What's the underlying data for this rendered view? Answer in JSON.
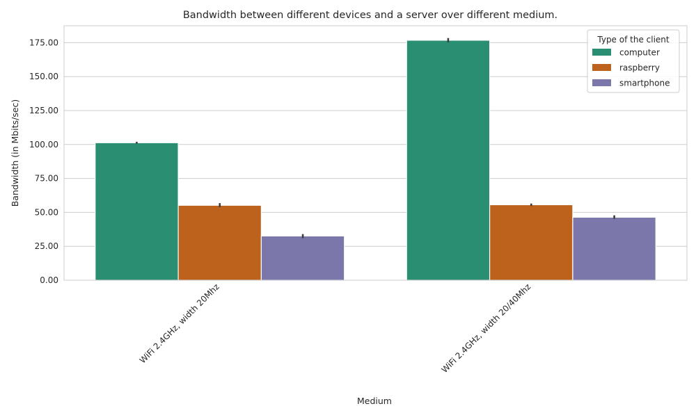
{
  "chart_data": {
    "type": "bar",
    "title": "Bandwidth between different devices and a server over different medium.",
    "xlabel": "Medium",
    "ylabel": "Bandwidth (in Mbits/sec)",
    "categories": [
      "WiFi 2.4GHz, width 20Mhz",
      "WiFi 2.4GHz, width 20/40Mhz"
    ],
    "series": [
      {
        "name": "computer",
        "color": "#2a8f72",
        "values": [
          101.3,
          176.8
        ],
        "err_low": [
          100.6,
          175.3
        ],
        "err_high": [
          102.0,
          178.4
        ]
      },
      {
        "name": "raspberry",
        "color": "#bd621d",
        "values": [
          55.2,
          55.6
        ],
        "err_low": [
          53.9,
          54.7
        ],
        "err_high": [
          56.8,
          56.5
        ]
      },
      {
        "name": "smartphone",
        "color": "#7c77ab",
        "values": [
          32.6,
          46.4
        ],
        "err_low": [
          31.0,
          45.2
        ],
        "err_high": [
          34.0,
          47.8
        ]
      }
    ],
    "ylim": [
      0,
      187.5
    ],
    "yticks": [
      0,
      25,
      50,
      75,
      100,
      125,
      150,
      175
    ],
    "ytick_labels": [
      "0.00",
      "25.00",
      "50.00",
      "75.00",
      "100.00",
      "125.00",
      "150.00",
      "175.00"
    ],
    "grid": true,
    "legend": {
      "title": "Type of the client",
      "placement": "top-right"
    }
  }
}
